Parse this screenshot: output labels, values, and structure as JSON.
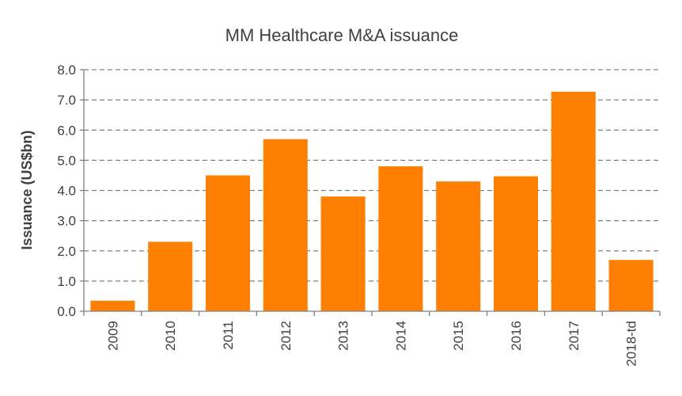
{
  "chart_data": {
    "type": "bar",
    "title": "MM Healthcare M&A issuance",
    "xlabel": "",
    "ylabel": "Issuance (US$bn)",
    "categories": [
      "2009",
      "2010",
      "2011",
      "2012",
      "2013",
      "2014",
      "2015",
      "2016",
      "2017",
      "2018-td"
    ],
    "values": [
      0.35,
      2.3,
      4.5,
      5.7,
      3.8,
      4.8,
      4.3,
      4.47,
      7.27,
      1.7
    ],
    "ylim": [
      0,
      8
    ],
    "yticks": [
      "0.0",
      "1.0",
      "2.0",
      "3.0",
      "4.0",
      "5.0",
      "6.0",
      "7.0",
      "8.0"
    ],
    "grid": true,
    "grid_style": "dashed",
    "legend": "none",
    "bar_color": "#FF8000",
    "text_color": "#404040",
    "grid_color": "#808080"
  }
}
